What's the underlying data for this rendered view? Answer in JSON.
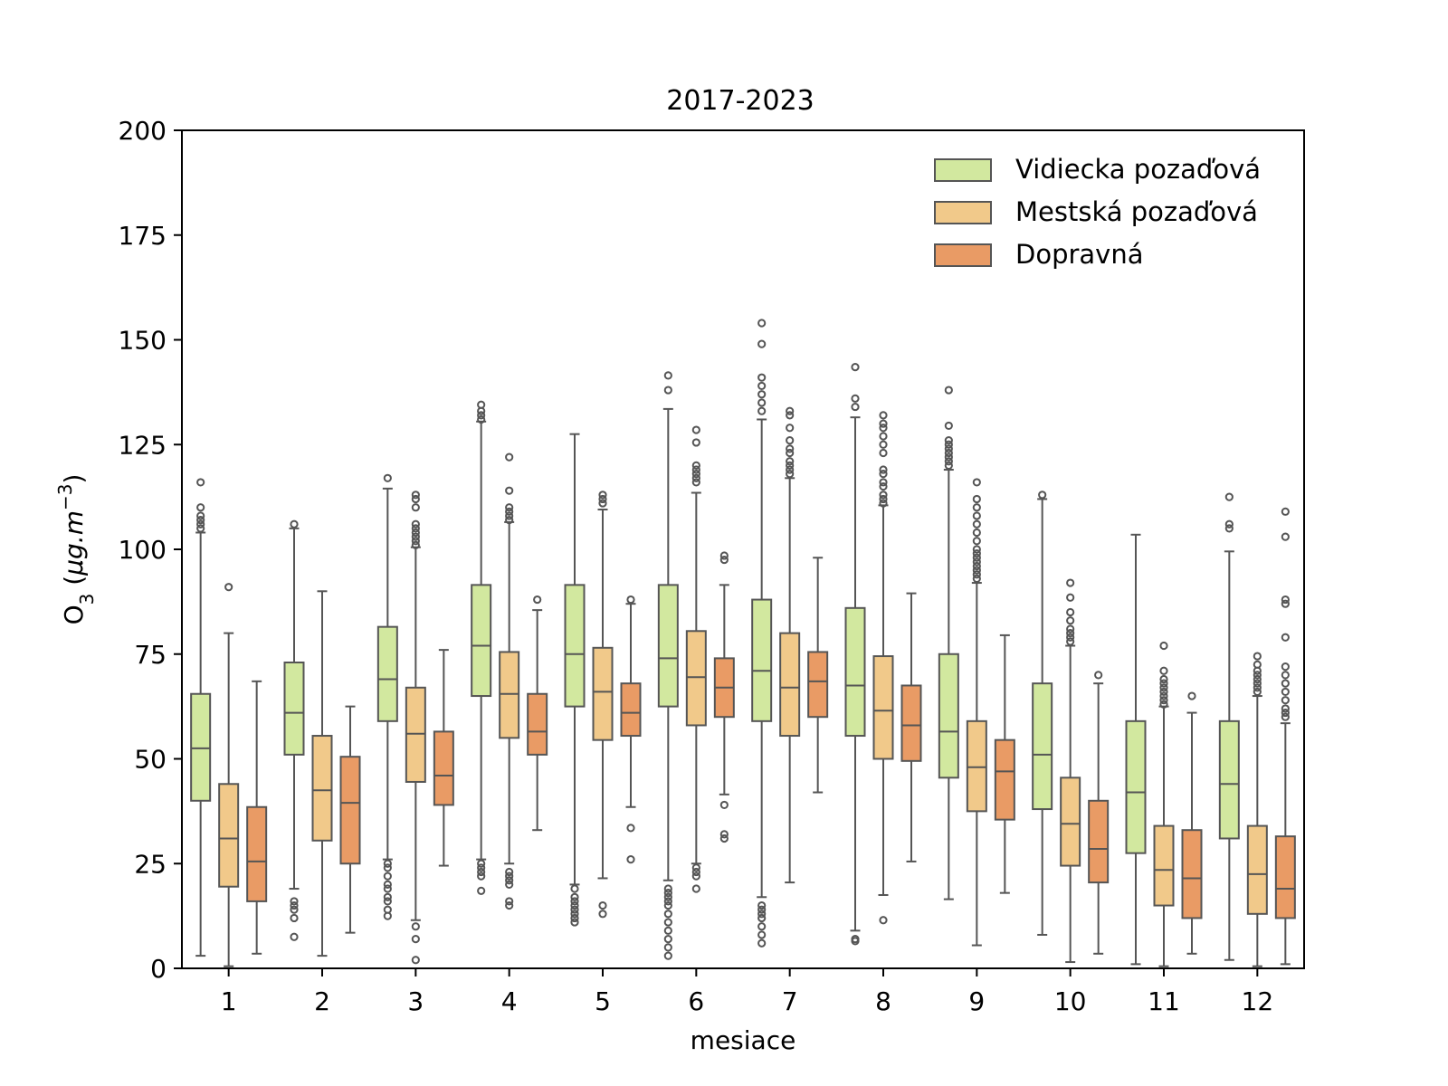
{
  "chart_data": {
    "type": "box",
    "title": "2017-2023",
    "xlabel": "mesiace",
    "ylabel_main": "O",
    "ylabel_sub": "3",
    "ylabel_unit_a": " (",
    "ylabel_unit_b": "μg.m",
    "ylabel_unit_sup": "−3",
    "ylabel_unit_c": ")",
    "ylim": [
      0,
      200
    ],
    "yticks": [
      "0",
      "25",
      "50",
      "75",
      "100",
      "125",
      "150",
      "175",
      "200"
    ],
    "categories": [
      "1",
      "2",
      "3",
      "4",
      "5",
      "6",
      "7",
      "8",
      "9",
      "10",
      "11",
      "12"
    ],
    "legend_position": "top-right",
    "series": [
      {
        "name": "Vidiecka pozaďová",
        "color": "#d2e89f",
        "boxes": [
          {
            "min": 3,
            "q1": 40,
            "median": 52.5,
            "q3": 65.5,
            "max": 104,
            "outliers": [
              105,
              106,
              107,
              108,
              110,
              116
            ]
          },
          {
            "min": 19,
            "q1": 51,
            "median": 61,
            "q3": 73,
            "max": 105,
            "outliers": [
              106,
              7.5,
              12,
              14,
              15,
              16
            ]
          },
          {
            "min": 26,
            "q1": 59,
            "median": 69,
            "q3": 81.5,
            "max": 114.5,
            "outliers": [
              117,
              12.5,
              14,
              16,
              17,
              19,
              20,
              22,
              24,
              25
            ]
          },
          {
            "min": 26,
            "q1": 65,
            "median": 77,
            "q3": 91.5,
            "max": 130.5,
            "outliers": [
              131,
              132,
              133,
              134.5,
              18.5,
              22,
              23,
              24,
              25
            ]
          },
          {
            "min": 20,
            "q1": 62.5,
            "median": 75,
            "q3": 91.5,
            "max": 127.5,
            "outliers": [
              11,
              12,
              13,
              14,
              15,
              16,
              17,
              19
            ]
          },
          {
            "min": 21,
            "q1": 62.5,
            "median": 74,
            "q3": 91.5,
            "max": 133.5,
            "outliers": [
              138,
              141.5,
              3,
              5,
              7,
              9,
              11,
              13,
              15,
              16,
              17,
              18,
              19
            ]
          },
          {
            "min": 17,
            "q1": 59,
            "median": 71,
            "q3": 88,
            "max": 131,
            "outliers": [
              133,
              135,
              137,
              139,
              141,
              149,
              154,
              6,
              8,
              10,
              12,
              13,
              14,
              15
            ]
          },
          {
            "min": 9,
            "q1": 55.5,
            "median": 67.5,
            "q3": 86,
            "max": 131.5,
            "outliers": [
              134,
              136,
              143.5,
              6.5,
              7
            ]
          },
          {
            "min": 16.5,
            "q1": 45.5,
            "median": 56.5,
            "q3": 75,
            "max": 119,
            "outliers": [
              120,
              121,
              122,
              123,
              124,
              125,
              126,
              129.5,
              138
            ]
          },
          {
            "min": 8,
            "q1": 38,
            "median": 51,
            "q3": 68,
            "max": 112,
            "outliers": [
              113
            ]
          },
          {
            "min": 1,
            "q1": 27.5,
            "median": 42,
            "q3": 59,
            "max": 103.5,
            "outliers": []
          },
          {
            "min": 2,
            "q1": 31,
            "median": 44,
            "q3": 59,
            "max": 99.5,
            "outliers": [
              105,
              106,
              112.5
            ]
          }
        ]
      },
      {
        "name": "Mestská pozaďová",
        "color": "#f1c98a",
        "boxes": [
          {
            "min": 0.5,
            "q1": 19.5,
            "median": 31,
            "q3": 44,
            "max": 80,
            "outliers": [
              91
            ]
          },
          {
            "min": 3,
            "q1": 30.5,
            "median": 42.5,
            "q3": 55.5,
            "max": 90,
            "outliers": []
          },
          {
            "min": 11.5,
            "q1": 44.5,
            "median": 56,
            "q3": 67,
            "max": 100.5,
            "outliers": [
              101,
              102,
              103,
              104,
              105,
              106,
              110,
              112,
              113,
              2,
              7,
              10
            ]
          },
          {
            "min": 25,
            "q1": 55,
            "median": 65.5,
            "q3": 75.5,
            "max": 106.5,
            "outliers": [
              107,
              108,
              109,
              110,
              114,
              122,
              15,
              16,
              20,
              21,
              22,
              23
            ]
          },
          {
            "min": 21.5,
            "q1": 54.5,
            "median": 66,
            "q3": 76.5,
            "max": 109.5,
            "outliers": [
              111,
              112,
              113,
              13,
              15
            ]
          },
          {
            "min": 25,
            "q1": 58,
            "median": 69.5,
            "q3": 80.5,
            "max": 113.5,
            "outliers": [
              116,
              117,
              118,
              119,
              120,
              125.5,
              128.5,
              19,
              22,
              23,
              24
            ]
          },
          {
            "min": 20.5,
            "q1": 55.5,
            "median": 67,
            "q3": 80,
            "max": 117,
            "outliers": [
              118,
              119,
              120,
              121,
              123,
              124,
              126,
              129,
              132,
              133
            ]
          },
          {
            "min": 17.5,
            "q1": 50,
            "median": 61.5,
            "q3": 74.5,
            "max": 110.5,
            "outliers": [
              111,
              112,
              113,
              115,
              116,
              118,
              119,
              123,
              125,
              127,
              129,
              130,
              132,
              11.5
            ]
          },
          {
            "min": 5.5,
            "q1": 37.5,
            "median": 48,
            "q3": 59,
            "max": 92,
            "outliers": [
              93,
              94,
              95,
              96,
              97,
              98,
              99,
              100,
              102,
              104,
              106,
              108,
              110,
              112,
              116
            ]
          },
          {
            "min": 1.5,
            "q1": 24.5,
            "median": 34.5,
            "q3": 45.5,
            "max": 77,
            "outliers": [
              78,
              79,
              80,
              81,
              83,
              85,
              88.5,
              92
            ]
          },
          {
            "min": 0.5,
            "q1": 15,
            "median": 23.5,
            "q3": 34,
            "max": 62.5,
            "outliers": [
              63,
              64,
              65,
              66,
              67,
              68,
              69,
              71,
              77
            ]
          },
          {
            "min": 0.5,
            "q1": 13,
            "median": 22.5,
            "q3": 34,
            "max": 65,
            "outliers": [
              66,
              67,
              68,
              69,
              70,
              71,
              72.5,
              74.5
            ]
          }
        ]
      },
      {
        "name": "Dopravná",
        "color": "#e99b65",
        "boxes": [
          {
            "min": 3.5,
            "q1": 16,
            "median": 25.5,
            "q3": 38.5,
            "max": 68.5,
            "outliers": []
          },
          {
            "min": 8.5,
            "q1": 25,
            "median": 39.5,
            "q3": 50.5,
            "max": 62.5,
            "outliers": []
          },
          {
            "min": 24.5,
            "q1": 39,
            "median": 46,
            "q3": 56.5,
            "max": 76,
            "outliers": []
          },
          {
            "min": 33,
            "q1": 51,
            "median": 56.5,
            "q3": 65.5,
            "max": 85.5,
            "outliers": [
              88
            ]
          },
          {
            "min": 38.5,
            "q1": 55.5,
            "median": 61,
            "q3": 68,
            "max": 87,
            "outliers": [
              88,
              26,
              33.5
            ]
          },
          {
            "min": 41.5,
            "q1": 60,
            "median": 67,
            "q3": 74,
            "max": 91.5,
            "outliers": [
              97.5,
              98.5,
              31,
              32,
              39
            ]
          },
          {
            "min": 42,
            "q1": 60,
            "median": 68.5,
            "q3": 75.5,
            "max": 98,
            "outliers": []
          },
          {
            "min": 25.5,
            "q1": 49.5,
            "median": 58,
            "q3": 67.5,
            "max": 89.5,
            "outliers": []
          },
          {
            "min": 18,
            "q1": 35.5,
            "median": 47,
            "q3": 54.5,
            "max": 79.5,
            "outliers": []
          },
          {
            "min": 3.5,
            "q1": 20.5,
            "median": 28.5,
            "q3": 40,
            "max": 68,
            "outliers": [
              70
            ]
          },
          {
            "min": 3.5,
            "q1": 12,
            "median": 21.5,
            "q3": 33,
            "max": 61,
            "outliers": [
              65
            ]
          },
          {
            "min": 1,
            "q1": 12,
            "median": 19,
            "q3": 31.5,
            "max": 58.5,
            "outliers": [
              60,
              61,
              62,
              64,
              66,
              68,
              70,
              72,
              79,
              87,
              88,
              103,
              109
            ]
          }
        ]
      }
    ]
  }
}
